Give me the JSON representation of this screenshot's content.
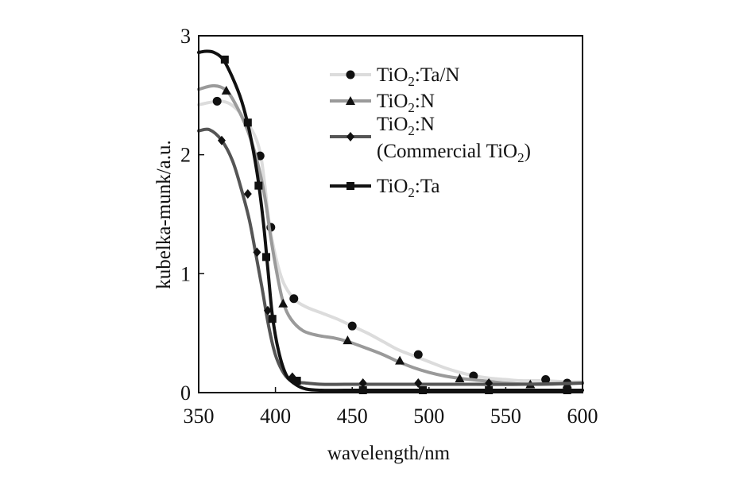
{
  "chart_data": {
    "type": "line",
    "xlabel": "wavelength/nm",
    "ylabel": "kubelka-munk/a.u.",
    "xlim": [
      350,
      600
    ],
    "ylim": [
      0,
      3
    ],
    "xticks": [
      "350",
      "400",
      "450",
      "500",
      "550",
      "600"
    ],
    "yticks": [
      "0",
      "1",
      "2",
      "3"
    ],
    "legend_position": "top-right",
    "series": [
      {
        "name_parts": [
          "TiO",
          "2",
          ":Ta/N"
        ],
        "marker": "circle",
        "color": "#dcdcdc",
        "x": [
          350,
          365,
          375,
          385,
          390,
          393,
          396,
          400,
          405,
          412,
          420,
          430,
          440,
          450,
          460,
          470,
          480,
          490,
          500,
          510,
          520,
          530,
          540,
          550,
          560,
          575,
          590,
          600
        ],
        "y": [
          2.42,
          2.45,
          2.38,
          2.2,
          2.02,
          1.75,
          1.42,
          1.15,
          0.93,
          0.79,
          0.72,
          0.67,
          0.62,
          0.56,
          0.5,
          0.43,
          0.36,
          0.31,
          0.26,
          0.21,
          0.17,
          0.14,
          0.12,
          0.11,
          0.1,
          0.1,
          0.09,
          0.09
        ],
        "marker_x": [
          362,
          390,
          397,
          412,
          450,
          493,
          529,
          576,
          590
        ],
        "marker_y": [
          2.45,
          1.99,
          1.39,
          0.79,
          0.56,
          0.32,
          0.14,
          0.11,
          0.08
        ]
      },
      {
        "name_parts": [
          "TiO",
          "2",
          ":N"
        ],
        "marker": "triangle",
        "color": "#9a9a9a",
        "x": [
          350,
          360,
          368,
          375,
          382,
          388,
          393,
          397,
          401,
          405,
          410,
          418,
          428,
          438,
          447,
          460,
          470,
          480,
          490,
          500,
          510,
          520,
          535,
          550,
          565,
          580,
          600
        ],
        "y": [
          2.55,
          2.58,
          2.54,
          2.4,
          2.2,
          1.95,
          1.65,
          1.3,
          1.0,
          0.76,
          0.62,
          0.52,
          0.48,
          0.46,
          0.43,
          0.37,
          0.32,
          0.26,
          0.21,
          0.17,
          0.14,
          0.12,
          0.1,
          0.08,
          0.07,
          0.07,
          0.08
        ],
        "marker_x": [
          368,
          405,
          447,
          481,
          520,
          566,
          590
        ],
        "marker_y": [
          2.54,
          0.75,
          0.44,
          0.27,
          0.12,
          0.07,
          0.07
        ]
      },
      {
        "name_parts": [
          "TiO",
          "2",
          ":N"
        ],
        "name_line2_parts": [
          "(Commercial TiO",
          "2",
          ")"
        ],
        "marker": "diamond",
        "color": "#555555",
        "x": [
          350,
          357,
          365,
          372,
          378,
          383,
          387,
          391,
          395,
          399,
          403,
          408,
          413,
          420,
          430,
          445,
          460,
          480,
          500,
          530,
          560,
          600
        ],
        "y": [
          2.2,
          2.21,
          2.12,
          1.95,
          1.7,
          1.45,
          1.18,
          0.9,
          0.6,
          0.36,
          0.22,
          0.12,
          0.09,
          0.08,
          0.07,
          0.07,
          0.07,
          0.07,
          0.07,
          0.07,
          0.07,
          0.08
        ],
        "marker_x": [
          365,
          382,
          388,
          395,
          411,
          457,
          493,
          539
        ],
        "marker_y": [
          2.12,
          1.67,
          1.18,
          0.69,
          0.13,
          0.08,
          0.08,
          0.08
        ]
      },
      {
        "name_parts": [
          "TiO",
          "2",
          ":Ta"
        ],
        "marker": "square",
        "color": "#111111",
        "x": [
          350,
          355,
          360,
          366,
          372,
          378,
          383,
          388,
          392,
          395,
          398,
          402,
          407,
          413,
          420,
          430,
          445,
          460,
          480,
          500,
          550,
          600
        ],
        "y": [
          2.86,
          2.87,
          2.86,
          2.8,
          2.65,
          2.45,
          2.2,
          1.85,
          1.45,
          1.05,
          0.65,
          0.35,
          0.15,
          0.07,
          0.03,
          0.02,
          0.02,
          0.02,
          0.02,
          0.02,
          0.02,
          0.02
        ],
        "marker_x": [
          367,
          382,
          389,
          394,
          398,
          414,
          457,
          496,
          539,
          590
        ],
        "marker_y": [
          2.8,
          2.27,
          1.74,
          1.14,
          0.62,
          0.1,
          0.02,
          0.02,
          0.02,
          0.02
        ]
      }
    ]
  }
}
